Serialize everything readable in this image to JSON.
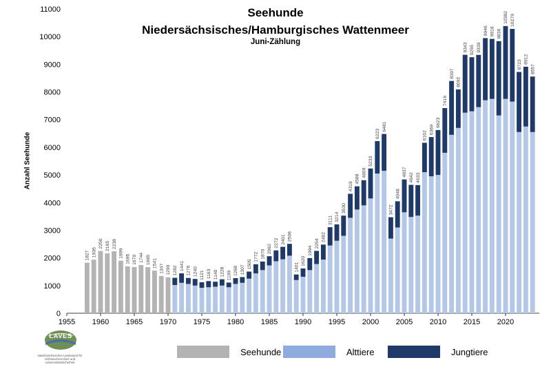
{
  "chart_data": {
    "type": "bar",
    "title": "Seehunde",
    "subtitle": "Niedersächsisches/Hamburgisches Wattenmeer",
    "subtitle2": "Juni-Zählung",
    "xlabel": "",
    "ylabel": "Anzahl Seehunde",
    "xlim": [
      1955,
      2025
    ],
    "ylim": [
      0,
      11000
    ],
    "xticks": [
      1955,
      1960,
      1965,
      1970,
      1975,
      1980,
      1985,
      1990,
      1995,
      2000,
      2005,
      2010,
      2015,
      2020
    ],
    "yticks": [
      0,
      1000,
      2000,
      3000,
      4000,
      5000,
      6000,
      7000,
      8000,
      9000,
      10000,
      11000
    ],
    "grid": false,
    "legend_position": "bottom",
    "stacked": true,
    "series": [
      {
        "name": "Seehunde",
        "color": "#b3b3b3"
      },
      {
        "name": "Alttiere",
        "color": "#b4c7e7"
      },
      {
        "name": "Jungtiere",
        "color": "#1f3a68"
      }
    ],
    "seehunde": [
      [
        1958,
        1827
      ],
      [
        1959,
        1936
      ],
      [
        1960,
        2250
      ],
      [
        1961,
        2165
      ],
      [
        1962,
        2238
      ],
      [
        1963,
        1899
      ],
      [
        1964,
        1695
      ],
      [
        1965,
        1670
      ],
      [
        1966,
        1744
      ],
      [
        1967,
        1665
      ],
      [
        1968,
        1541
      ],
      [
        1969,
        1347
      ],
      [
        1970,
        1299
      ]
    ],
    "stacked_bars": [
      {
        "year": 1971,
        "total": 1282,
        "alttiere": 1020
      },
      {
        "year": 1972,
        "total": 1441,
        "alttiere": 1100
      },
      {
        "year": 1973,
        "total": 1276,
        "alttiere": 1060
      },
      {
        "year": 1974,
        "total": 1240,
        "alttiere": 1000
      },
      {
        "year": 1975,
        "total": 1121,
        "alttiere": 920
      },
      {
        "year": 1976,
        "total": 1163,
        "alttiere": 940
      },
      {
        "year": 1977,
        "total": 1140,
        "alttiere": 960
      },
      {
        "year": 1978,
        "total": 1228,
        "alttiere": 1000
      },
      {
        "year": 1979,
        "total": 1109,
        "alttiere": 940
      },
      {
        "year": 1980,
        "total": 1268,
        "alttiere": 1060
      },
      {
        "year": 1981,
        "total": 1307,
        "alttiere": 1100
      },
      {
        "year": 1982,
        "total": 1505,
        "alttiere": 1250
      },
      {
        "year": 1983,
        "total": 1772,
        "alttiere": 1440
      },
      {
        "year": 1984,
        "total": 1870,
        "alttiere": 1560
      },
      {
        "year": 1985,
        "total": 2062,
        "alttiere": 1730
      },
      {
        "year": 1986,
        "total": 2272,
        "alttiere": 1880
      },
      {
        "year": 1987,
        "total": 2401,
        "alttiere": 1950
      },
      {
        "year": 1988,
        "total": 2508,
        "alttiere": 2080
      },
      {
        "year": 1989,
        "total": 1401,
        "alttiere": 1200
      },
      {
        "year": 1990,
        "total": 1620,
        "alttiere": 1320
      },
      {
        "year": 1991,
        "total": 1994,
        "alttiere": 1560
      },
      {
        "year": 1992,
        "total": 2254,
        "alttiere": 1780
      },
      {
        "year": 1993,
        "total": 2482,
        "alttiere": 1940
      },
      {
        "year": 1994,
        "total": 3111,
        "alttiere": 2450
      },
      {
        "year": 1995,
        "total": 3214,
        "alttiere": 2620
      },
      {
        "year": 1996,
        "total": 3530,
        "alttiere": 2800
      },
      {
        "year": 1997,
        "total": 4319,
        "alttiere": 3450
      },
      {
        "year": 1998,
        "total": 4588,
        "alttiere": 3750
      },
      {
        "year": 1999,
        "total": 4809,
        "alttiere": 3900
      },
      {
        "year": 2000,
        "total": 5233,
        "alttiere": 4150
      },
      {
        "year": 2001,
        "total": 6223,
        "alttiere": 5050
      },
      {
        "year": 2002,
        "total": 6481,
        "alttiere": 5150
      },
      {
        "year": 2003,
        "total": 3472,
        "alttiere": 2700
      },
      {
        "year": 2004,
        "total": 4048,
        "alttiere": 3100
      },
      {
        "year": 2005,
        "total": 4837,
        "alttiere": 3650
      },
      {
        "year": 2006,
        "total": 4642,
        "alttiere": 3480
      },
      {
        "year": 2007,
        "total": 4633,
        "alttiere": 3530
      },
      {
        "year": 2008,
        "total": 6162,
        "alttiere": 5100
      },
      {
        "year": 2009,
        "total": 6369,
        "alttiere": 4950
      },
      {
        "year": 2010,
        "total": 6623,
        "alttiere": 5000
      },
      {
        "year": 2011,
        "total": 7416,
        "alttiere": 5800
      },
      {
        "year": 2012,
        "total": 8397,
        "alttiere": 6450
      },
      {
        "year": 2013,
        "total": 8092,
        "alttiere": 6700
      },
      {
        "year": 2014,
        "total": 9343,
        "alttiere": 7250
      },
      {
        "year": 2015,
        "total": 9255,
        "alttiere": 7300
      },
      {
        "year": 2016,
        "total": 9339,
        "alttiere": 7450
      },
      {
        "year": 2017,
        "total": 9946,
        "alttiere": 7700
      },
      {
        "year": 2018,
        "total": 9918,
        "alttiere": 7750
      },
      {
        "year": 2019,
        "total": 9836,
        "alttiere": 7150
      },
      {
        "year": 2020,
        "total": 10382,
        "alttiere": 7750
      },
      {
        "year": 2021,
        "total": 10279,
        "alttiere": 7650
      },
      {
        "year": 2022,
        "total": 8723,
        "alttiere": 6550
      },
      {
        "year": 2023,
        "total": 8912,
        "alttiere": 6750
      },
      {
        "year": 2024,
        "total": 8557,
        "alttiere": 6550
      }
    ]
  },
  "logo": {
    "text": "LAVES",
    "subtitle": "Niedersächsisches Landesamt für Verbraucherschutz und Lebensmittelsicherheit"
  }
}
